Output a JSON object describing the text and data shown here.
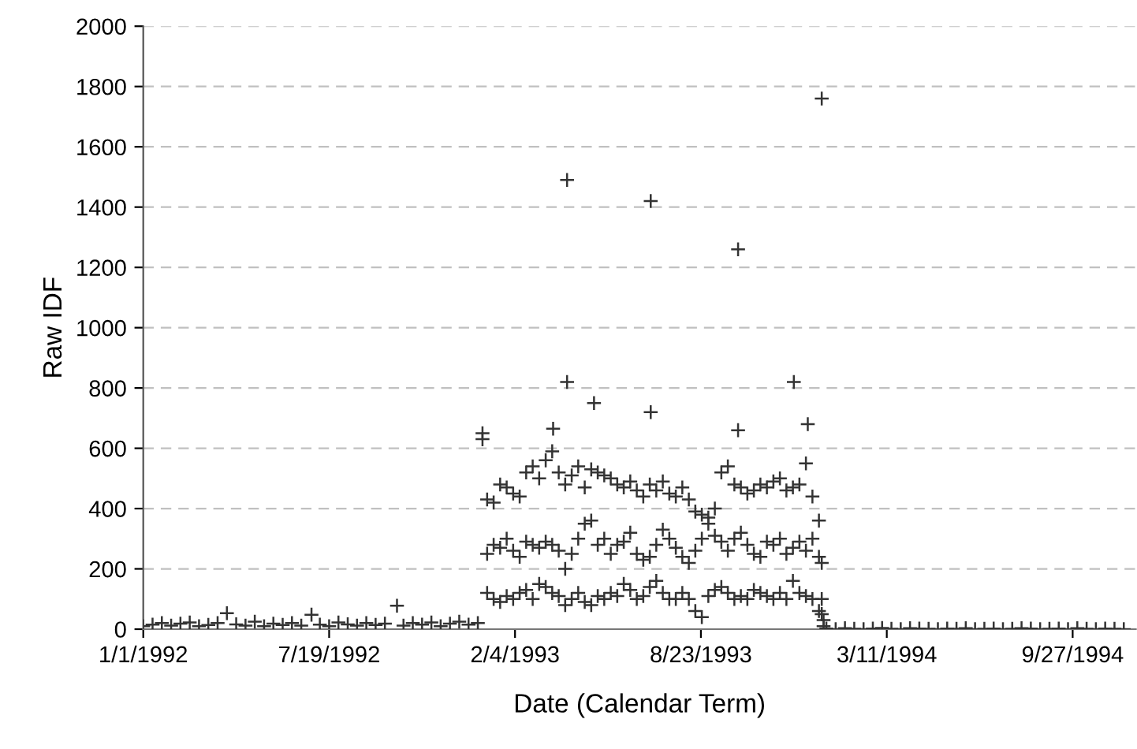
{
  "chart_data": {
    "type": "scatter",
    "xlabel": "Date (Calendar Term)",
    "ylabel": "Raw IDF",
    "marker": "cross",
    "grid": "y",
    "legend": false,
    "xlim": [
      "1992-01-01",
      "1994-12-04"
    ],
    "xticks": [
      {
        "value": "1992-01-01",
        "label": "1/1/1992"
      },
      {
        "value": "1992-07-19",
        "label": "7/19/1992"
      },
      {
        "value": "1993-02-04",
        "label": "2/4/1993"
      },
      {
        "value": "1993-08-23",
        "label": "8/23/1993"
      },
      {
        "value": "1994-03-11",
        "label": "3/11/1994"
      },
      {
        "value": "1994-09-27",
        "label": "9/27/1994"
      }
    ],
    "ylim": [
      0,
      2000
    ],
    "yticks": [
      0,
      200,
      400,
      600,
      800,
      1000,
      1200,
      1400,
      1600,
      1800,
      2000
    ],
    "series": [
      {
        "color": "#333333",
        "x": [
          "1992-01-01",
          "1992-01-11",
          "1992-01-21",
          "1992-01-31",
          "1992-02-10",
          "1992-02-20",
          "1992-03-01",
          "1992-03-11",
          "1992-03-21",
          "1992-03-31",
          "1992-04-10",
          "1992-04-20",
          "1992-04-30",
          "1992-05-10",
          "1992-05-20",
          "1992-05-30",
          "1992-06-09",
          "1992-06-19",
          "1992-06-30",
          "1992-07-09",
          "1992-07-19",
          "1992-07-29",
          "1992-08-08",
          "1992-08-18",
          "1992-08-28",
          "1992-09-07",
          "1992-09-17",
          "1992-09-30",
          "1992-10-07",
          "1992-10-17",
          "1992-10-27",
          "1992-11-06",
          "1992-11-16",
          "1992-11-26",
          "1992-12-06",
          "1992-12-16",
          "1992-12-26"
        ],
        "values": [
          10,
          15,
          20,
          12,
          18,
          22,
          10,
          14,
          20,
          53,
          16,
          12,
          25,
          10,
          18,
          14,
          20,
          12,
          48,
          15,
          10,
          22,
          16,
          12,
          20,
          14,
          18,
          78,
          12,
          20,
          15,
          22,
          10,
          18,
          25,
          15,
          20
        ]
      },
      {
        "color": "#333333",
        "x": [
          "1992-12-31",
          "1992-12-31",
          "1993-01-05",
          "1993-01-12",
          "1993-01-19",
          "1993-01-26",
          "1993-02-02",
          "1993-02-09",
          "1993-02-16",
          "1993-02-23",
          "1993-03-02",
          "1993-03-09",
          "1993-03-16",
          "1993-03-23",
          "1993-03-30",
          "1993-04-06",
          "1993-04-13",
          "1993-04-20",
          "1993-04-27",
          "1993-05-04",
          "1993-05-11",
          "1993-05-18",
          "1993-05-25",
          "1993-06-01",
          "1993-06-08",
          "1993-06-15",
          "1993-06-22",
          "1993-06-29",
          "1993-07-06",
          "1993-07-13",
          "1993-07-20",
          "1993-07-27",
          "1993-08-03",
          "1993-08-10",
          "1993-08-17",
          "1993-08-24",
          "1993-08-31",
          "1993-09-07",
          "1993-09-14",
          "1993-09-21",
          "1993-09-28",
          "1993-10-05",
          "1993-10-12",
          "1993-10-19",
          "1993-10-26",
          "1993-11-02",
          "1993-11-09",
          "1993-11-16",
          "1993-11-23",
          "1993-11-30",
          "1993-12-07",
          "1993-12-14",
          "1993-12-21",
          "1993-12-28"
        ],
        "values": [
          650,
          630,
          430,
          420,
          480,
          470,
          450,
          440,
          520,
          540,
          500,
          560,
          590,
          520,
          480,
          510,
          540,
          470,
          530,
          520,
          510,
          500,
          480,
          470,
          490,
          460,
          440,
          480,
          460,
          490,
          450,
          440,
          470,
          430,
          390,
          380,
          370,
          400,
          520,
          540,
          480,
          470,
          450,
          460,
          480,
          470,
          490,
          500,
          460,
          470,
          480,
          550,
          440,
          360
        ]
      },
      {
        "color": "#333333",
        "x": [
          "1993-01-05",
          "1993-01-12",
          "1993-01-19",
          "1993-01-26",
          "1993-02-02",
          "1993-02-09",
          "1993-02-16",
          "1993-02-23",
          "1993-03-02",
          "1993-03-09",
          "1993-03-16",
          "1993-03-23",
          "1993-03-30",
          "1993-04-06",
          "1993-04-13",
          "1993-04-20",
          "1993-04-27",
          "1993-05-04",
          "1993-05-11",
          "1993-05-18",
          "1993-05-25",
          "1993-06-01",
          "1993-06-08",
          "1993-06-15",
          "1993-06-22",
          "1993-06-29",
          "1993-07-06",
          "1993-07-13",
          "1993-07-20",
          "1993-07-27",
          "1993-08-03",
          "1993-08-10",
          "1993-08-17",
          "1993-08-24",
          "1993-08-31",
          "1993-09-07",
          "1993-09-14",
          "1993-09-21",
          "1993-09-28",
          "1993-10-05",
          "1993-10-12",
          "1993-10-19",
          "1993-10-26",
          "1993-11-02",
          "1993-11-09",
          "1993-11-16",
          "1993-11-23",
          "1993-11-30",
          "1993-12-07",
          "1993-12-14",
          "1993-12-21",
          "1993-12-28"
        ],
        "values": [
          250,
          280,
          270,
          300,
          260,
          240,
          290,
          280,
          270,
          290,
          280,
          260,
          200,
          250,
          300,
          350,
          360,
          280,
          300,
          250,
          280,
          290,
          320,
          250,
          230,
          240,
          280,
          330,
          300,
          270,
          240,
          220,
          260,
          300,
          350,
          310,
          290,
          260,
          300,
          320,
          280,
          250,
          240,
          290,
          280,
          300,
          250,
          270,
          290,
          260,
          300,
          240
        ]
      },
      {
        "color": "#333333",
        "x": [
          "1993-01-05",
          "1993-01-12",
          "1993-01-19",
          "1993-01-26",
          "1993-02-02",
          "1993-02-09",
          "1993-02-16",
          "1993-02-23",
          "1993-03-02",
          "1993-03-09",
          "1993-03-16",
          "1993-03-23",
          "1993-03-30",
          "1993-04-06",
          "1993-04-13",
          "1993-04-20",
          "1993-04-27",
          "1993-05-04",
          "1993-05-11",
          "1993-05-18",
          "1993-05-25",
          "1993-06-01",
          "1993-06-08",
          "1993-06-15",
          "1993-06-22",
          "1993-06-29",
          "1993-07-06",
          "1993-07-13",
          "1993-07-20",
          "1993-07-27",
          "1993-08-03",
          "1993-08-10",
          "1993-08-17",
          "1993-08-24",
          "1993-08-31",
          "1993-09-07",
          "1993-09-14",
          "1993-09-21",
          "1993-09-28",
          "1993-10-05",
          "1993-10-12",
          "1993-10-19",
          "1993-10-26",
          "1993-11-02",
          "1993-11-09",
          "1993-11-16",
          "1993-11-23",
          "1993-11-30",
          "1993-12-07",
          "1993-12-14",
          "1993-12-21",
          "1993-12-28"
        ],
        "values": [
          120,
          100,
          90,
          110,
          100,
          120,
          130,
          100,
          150,
          140,
          120,
          110,
          80,
          100,
          120,
          90,
          80,
          110,
          100,
          120,
          110,
          150,
          130,
          100,
          110,
          140,
          160,
          120,
          100,
          100,
          120,
          100,
          60,
          40,
          110,
          130,
          140,
          120,
          100,
          110,
          100,
          130,
          120,
          110,
          100,
          120,
          100,
          160,
          120,
          110,
          100,
          60
        ]
      },
      {
        "color": "#333333",
        "x": [
          "1993-03-17",
          "1993-04-01",
          "1993-04-01",
          "1993-04-30",
          "1993-06-30",
          "1993-06-30",
          "1993-10-02",
          "1993-10-02",
          "1993-12-01",
          "1993-12-16",
          "1993-12-31",
          "1993-12-31",
          "1993-12-31",
          "1993-12-31",
          "1994-01-02",
          "1994-01-02"
        ],
        "values": [
          665,
          1490,
          820,
          750,
          1420,
          720,
          1260,
          660,
          820,
          680,
          1760,
          220,
          100,
          50,
          30,
          10
        ]
      },
      {
        "color": "#333333",
        "x": [
          "1994-01-05",
          "1994-01-15",
          "1994-01-25",
          "1994-02-04",
          "1994-02-14",
          "1994-02-24",
          "1994-03-06",
          "1994-03-16",
          "1994-03-26",
          "1994-04-05",
          "1994-04-15",
          "1994-04-25",
          "1994-05-05",
          "1994-05-15",
          "1994-05-25",
          "1994-06-04",
          "1994-06-14",
          "1994-06-24",
          "1994-07-04",
          "1994-07-14",
          "1994-07-24",
          "1994-08-03",
          "1994-08-13",
          "1994-08-23",
          "1994-09-02",
          "1994-09-12",
          "1994-09-22",
          "1994-10-02",
          "1994-10-12",
          "1994-10-22",
          "1994-11-01",
          "1994-11-11",
          "1994-11-21"
        ],
        "values": [
          2,
          0,
          3,
          1,
          0,
          2,
          4,
          1,
          0,
          3,
          2,
          1,
          0,
          2,
          1,
          3,
          0,
          1,
          2,
          0,
          1,
          3,
          2,
          0,
          1,
          2,
          0,
          3,
          1,
          0,
          2,
          1,
          0
        ]
      }
    ]
  }
}
